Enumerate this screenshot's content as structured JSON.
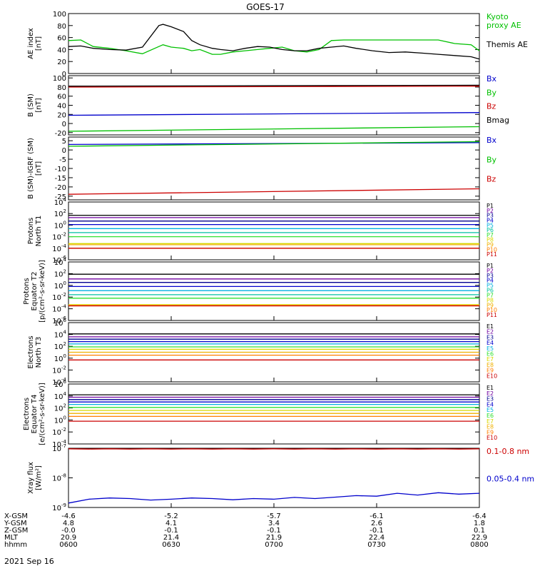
{
  "title": "GOES-17",
  "date_label": "2021 Sep 16",
  "colors": {
    "black": "#000000",
    "red": "#cc0000",
    "green": "#00c000",
    "blue": "#0000cc",
    "navy": "#000090",
    "purple": "#7000a0",
    "cyan": "#00b0e0",
    "teal": "#00c0a0",
    "lime": "#30e030",
    "yellow": "#d8d800",
    "gold": "#f0b000",
    "orange": "#ff8000",
    "darkred": "#b00000"
  },
  "footer": {
    "row_labels": [
      "X-GSM",
      "Y-GSM",
      "Z-GSM",
      "MLT",
      "hhmm"
    ],
    "columns": [
      [
        "-4.6",
        "4.8",
        "-0.0",
        "20.9",
        "0600"
      ],
      [
        "-5.2",
        "4.1",
        "-0.1",
        "21.4",
        "0630"
      ],
      [
        "-5.7",
        "3.4",
        "-0.1",
        "21.9",
        "0700"
      ],
      [
        "-6.1",
        "2.6",
        "-0.1",
        "22.4",
        "0730"
      ],
      [
        "-6.4",
        "1.8",
        "0.1",
        "22.9",
        "0800"
      ]
    ]
  },
  "chart_data": [
    {
      "type": "line",
      "ylabel": "AE index\n[nT]",
      "yticks": [
        "0",
        "20",
        "40",
        "60",
        "80",
        "100"
      ],
      "ylim": [
        0,
        100
      ],
      "scale": "linear",
      "x": [
        0,
        3,
        6,
        10,
        14,
        18,
        22,
        23,
        25,
        28,
        30,
        32,
        35,
        37,
        40,
        43,
        46,
        49,
        52,
        55,
        58,
        61,
        64,
        67,
        70,
        74,
        78,
        82,
        86,
        90,
        94,
        98,
        100
      ],
      "series": [
        {
          "name": "Kyoto\nproxy AE",
          "color": "green",
          "values": [
            55,
            56,
            45,
            42,
            38,
            33,
            45,
            48,
            44,
            42,
            38,
            40,
            32,
            32,
            36,
            38,
            40,
            42,
            44,
            38,
            36,
            40,
            55,
            56,
            56,
            56,
            56,
            56,
            56,
            56,
            50,
            48,
            38
          ]
        },
        {
          "name": "Themis AE",
          "color": "black",
          "values": [
            45,
            46,
            42,
            40,
            39,
            44,
            80,
            82,
            78,
            70,
            55,
            48,
            42,
            40,
            38,
            42,
            45,
            44,
            40,
            38,
            38,
            42,
            44,
            46,
            42,
            38,
            35,
            36,
            34,
            32,
            30,
            28,
            24
          ]
        }
      ]
    },
    {
      "type": "line",
      "ylabel": "B (SM)\n[nT]",
      "yticks": [
        "-20",
        "0",
        "20",
        "40",
        "60",
        "80",
        "100"
      ],
      "ylim": [
        -25,
        105
      ],
      "scale": "linear",
      "x": [
        0,
        100
      ],
      "series": [
        {
          "name": "Bx",
          "color": "blue",
          "values": [
            18,
            24
          ]
        },
        {
          "name": "By",
          "color": "green",
          "values": [
            -17,
            -7
          ]
        },
        {
          "name": "Bz",
          "color": "red",
          "values": [
            80,
            82
          ]
        },
        {
          "name": "Bmag",
          "color": "black",
          "values": [
            82,
            84
          ]
        }
      ]
    },
    {
      "type": "line",
      "ylabel": "B (SM)-IGRF (SM)\n[nT]",
      "yticks": [
        "-25",
        "-20",
        "-15",
        "-10",
        "-5",
        "0",
        "5"
      ],
      "ylim": [
        -27,
        7
      ],
      "scale": "linear",
      "x": [
        0,
        100
      ],
      "series": [
        {
          "name": "Bx",
          "color": "blue",
          "values": [
            3,
            4
          ]
        },
        {
          "name": "By",
          "color": "green",
          "values": [
            2,
            4.5
          ]
        },
        {
          "name": "Bz",
          "color": "red",
          "values": [
            -24,
            -21
          ]
        }
      ]
    },
    {
      "type": "line",
      "ylabel": "Protons\nNorth T1",
      "yticks": [
        "10^-6",
        "10^-4",
        "10^-2",
        "10^0",
        "10^2",
        "10^4"
      ],
      "ylim": [
        -6,
        4
      ],
      "scale": "log",
      "x": [
        0,
        100
      ],
      "series": [
        {
          "name": "P1",
          "color": "black",
          "values": [
            1.7,
            1.7
          ]
        },
        {
          "name": "P2",
          "color": "purple",
          "values": [
            1.3,
            1.3
          ]
        },
        {
          "name": "P3",
          "color": "navy",
          "values": [
            0.7,
            0.7
          ]
        },
        {
          "name": "P4",
          "color": "blue",
          "values": [
            0.1,
            0.1
          ]
        },
        {
          "name": "P5",
          "color": "cyan",
          "values": [
            -0.6,
            -0.6
          ]
        },
        {
          "name": "P6",
          "color": "teal",
          "values": [
            -1.3,
            -1.3
          ]
        },
        {
          "name": "P7",
          "color": "lime",
          "values": [
            -2.0,
            -2.0
          ]
        },
        {
          "name": "P8",
          "color": "yellow",
          "values": [
            -3.2,
            -3.2
          ]
        },
        {
          "name": "P9",
          "color": "gold",
          "values": [
            -3.4,
            -3.4
          ]
        },
        {
          "name": "P10",
          "color": "orange",
          "values": [
            -4.0,
            -4.0
          ]
        },
        {
          "name": "P11",
          "color": "red",
          "values": [
            -4.0,
            -4.0
          ]
        }
      ]
    },
    {
      "type": "line",
      "ylabel": "Protons\nEquator T2\n[p/(cm²-s-sr-keV)]",
      "yticks": [
        "10^-6",
        "10^-4",
        "10^-2",
        "10^0",
        "10^2",
        "10^4"
      ],
      "ylim": [
        -6,
        4
      ],
      "scale": "log",
      "x": [
        0,
        100
      ],
      "series": [
        {
          "name": "P1",
          "color": "black",
          "values": [
            1.9,
            1.9
          ]
        },
        {
          "name": "P2",
          "color": "purple",
          "values": [
            1.1,
            1.1
          ]
        },
        {
          "name": "P3",
          "color": "navy",
          "values": [
            0.5,
            0.5
          ]
        },
        {
          "name": "P4",
          "color": "blue",
          "values": [
            -0.2,
            -0.2
          ]
        },
        {
          "name": "P5",
          "color": "cyan",
          "values": [
            -0.9,
            -0.9
          ]
        },
        {
          "name": "P6",
          "color": "teal",
          "values": [
            -1.6,
            -1.6
          ]
        },
        {
          "name": "P7",
          "color": "lime",
          "values": [
            -2.2,
            -2.2
          ]
        },
        {
          "name": "P8",
          "color": "yellow",
          "values": [
            -3.3,
            -3.3
          ]
        },
        {
          "name": "P9",
          "color": "gold",
          "values": [
            -3.4,
            -3.4
          ]
        },
        {
          "name": "P10",
          "color": "orange",
          "values": [
            -3.5,
            -3.5
          ]
        },
        {
          "name": "P11",
          "color": "red",
          "values": [
            -3.5,
            -3.5
          ]
        }
      ]
    },
    {
      "type": "line",
      "ylabel": "Electrons\nNorth T3",
      "yticks": [
        "10^-4",
        "10^-2",
        "10^0",
        "10^2",
        "10^4",
        "10^6"
      ],
      "ylim": [
        -4,
        6
      ],
      "scale": "log",
      "x": [
        0,
        100
      ],
      "series": [
        {
          "name": "E1",
          "color": "black",
          "values": [
            4.1,
            4.1
          ]
        },
        {
          "name": "E2",
          "color": "purple",
          "values": [
            3.6,
            3.6
          ]
        },
        {
          "name": "E3",
          "color": "navy",
          "values": [
            3.2,
            3.2
          ]
        },
        {
          "name": "E4",
          "color": "blue",
          "values": [
            2.8,
            2.8
          ]
        },
        {
          "name": "E5",
          "color": "cyan",
          "values": [
            2.4,
            2.4
          ]
        },
        {
          "name": "E6",
          "color": "lime",
          "values": [
            1.9,
            1.9
          ]
        },
        {
          "name": "E7",
          "color": "yellow",
          "values": [
            1.5,
            1.5
          ]
        },
        {
          "name": "E8",
          "color": "gold",
          "values": [
            1.0,
            1.0
          ]
        },
        {
          "name": "E9",
          "color": "orange",
          "values": [
            0.5,
            0.5
          ]
        },
        {
          "name": "E10",
          "color": "red",
          "values": [
            -0.3,
            -0.3
          ]
        }
      ]
    },
    {
      "type": "line",
      "ylabel": "Electrons\nEquator T4\n[e/(cm²-s-sr-keV)]",
      "yticks": [
        "10^-4",
        "10^-2",
        "10^0",
        "10^2",
        "10^4",
        "10^6"
      ],
      "ylim": [
        -4,
        6
      ],
      "scale": "log",
      "x": [
        0,
        100
      ],
      "series": [
        {
          "name": "E1",
          "color": "black",
          "values": [
            4.2,
            4.2
          ]
        },
        {
          "name": "E2",
          "color": "purple",
          "values": [
            3.8,
            3.8
          ]
        },
        {
          "name": "E3",
          "color": "navy",
          "values": [
            3.4,
            3.4
          ]
        },
        {
          "name": "E4",
          "color": "blue",
          "values": [
            3.0,
            3.0
          ]
        },
        {
          "name": "E5",
          "color": "cyan",
          "values": [
            2.6,
            2.6
          ]
        },
        {
          "name": "E6",
          "color": "lime",
          "values": [
            2.1,
            2.1
          ]
        },
        {
          "name": "E7",
          "color": "yellow",
          "values": [
            1.6,
            1.6
          ]
        },
        {
          "name": "E8",
          "color": "gold",
          "values": [
            1.1,
            1.1
          ]
        },
        {
          "name": "E9",
          "color": "orange",
          "values": [
            0.6,
            0.6
          ]
        },
        {
          "name": "E10",
          "color": "red",
          "values": [
            -0.2,
            -0.2
          ]
        }
      ]
    },
    {
      "type": "line",
      "ylabel": "Xray flux\n[W/m²]",
      "yticks": [
        "10^-9",
        "10^-8",
        "10^-7"
      ],
      "ylim": [
        -9,
        -7
      ],
      "scale": "log",
      "x": [
        0,
        5,
        10,
        15,
        20,
        25,
        30,
        35,
        40,
        45,
        50,
        55,
        60,
        65,
        70,
        75,
        80,
        85,
        90,
        95,
        100
      ],
      "series": [
        {
          "name": "0.1-0.8 nm",
          "color": "red",
          "values": [
            -7.02,
            -7.03,
            -7.02,
            -7.03,
            -7.02,
            -7.03,
            -7.02,
            -7.03,
            -7.02,
            -7.03,
            -7.02,
            -7.03,
            -7.02,
            -7.03,
            -7.02,
            -7.03,
            -7.02,
            -7.03,
            -7.02,
            -7.03,
            -7.02
          ]
        },
        {
          "name": "0.05-0.4 nm",
          "color": "blue",
          "values": [
            -8.85,
            -8.72,
            -8.68,
            -8.7,
            -8.75,
            -8.72,
            -8.68,
            -8.7,
            -8.74,
            -8.7,
            -8.72,
            -8.66,
            -8.7,
            -8.65,
            -8.6,
            -8.62,
            -8.52,
            -8.58,
            -8.5,
            -8.55,
            -8.52
          ]
        }
      ]
    }
  ]
}
